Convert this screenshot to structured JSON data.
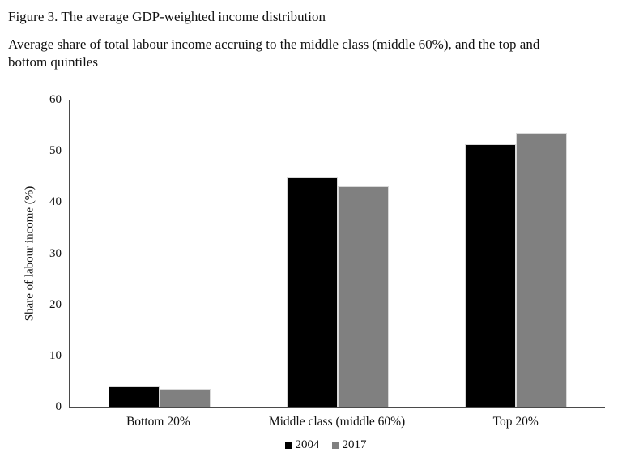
{
  "figure": {
    "title": "Figure 3. The average GDP-weighted income distribution",
    "subtitle_lines": [
      "Average share of total labour income accruing to the middle class (middle 60%), and the top and",
      "bottom quintiles"
    ]
  },
  "chart_data": {
    "type": "bar",
    "categories": [
      "Bottom 20%",
      "Middle class (middle 60%)",
      "Top 20%"
    ],
    "series": [
      {
        "name": "2004",
        "color": "#000000",
        "values": [
          4.0,
          44.8,
          51.3
        ]
      },
      {
        "name": "2017",
        "color": "#808080",
        "values": [
          3.5,
          43.0,
          53.5
        ]
      }
    ],
    "title": "",
    "xlabel": "",
    "ylabel": "Share of labour income (%)",
    "ylim": [
      0,
      60
    ],
    "yticks": [
      0,
      10,
      20,
      30,
      40,
      50,
      60
    ],
    "grid": false,
    "legend_position": "bottom",
    "axis_color": "#4a4a4a",
    "bar_border_color": "#d9d9d9"
  }
}
